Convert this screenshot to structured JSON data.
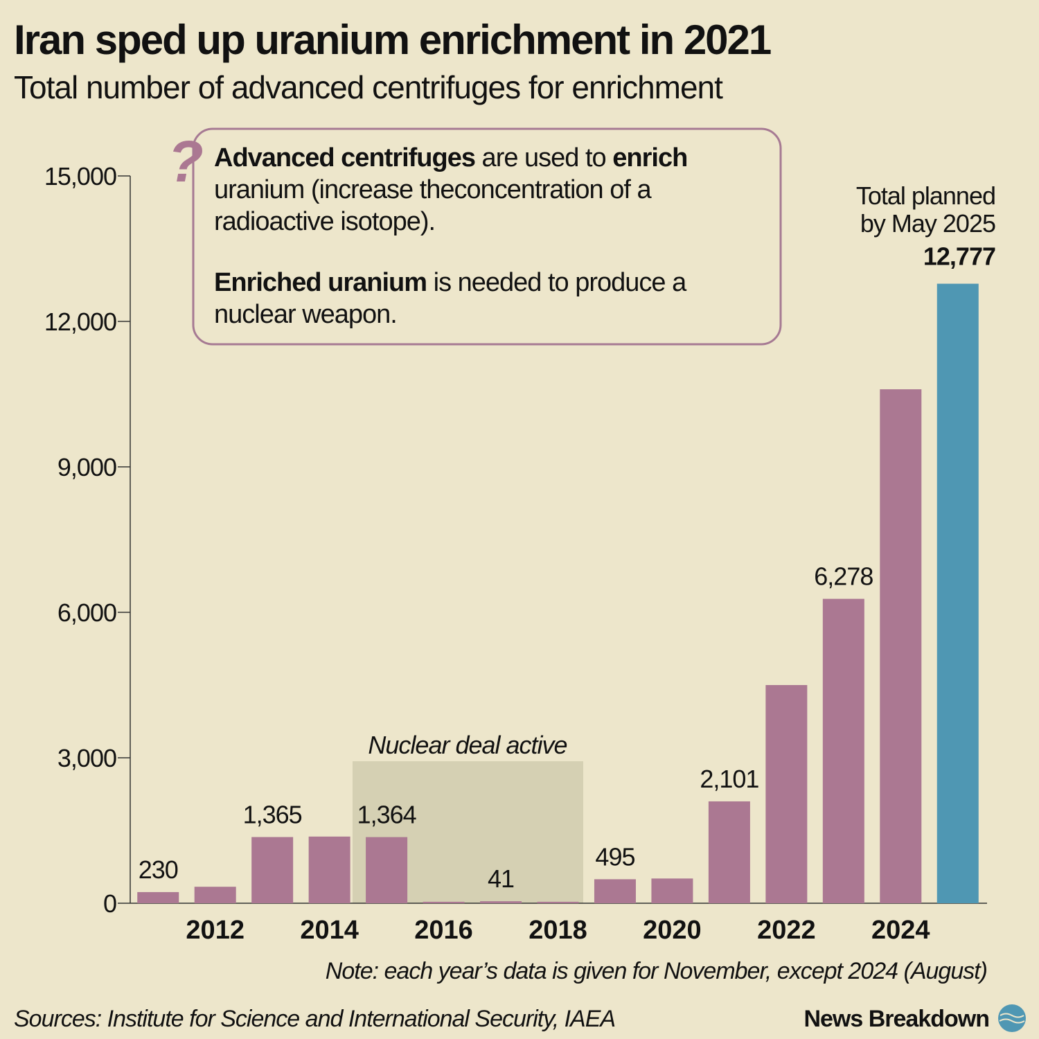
{
  "chart_data": {
    "type": "bar",
    "title": "Iran sped up uranium enrichment in 2021",
    "subtitle": "Total number of advanced centrifuges for enrichment",
    "categories": [
      null,
      "2012",
      null,
      "2014",
      null,
      "2016",
      null,
      "2018",
      null,
      "2020",
      null,
      "2022",
      null,
      "2024",
      null
    ],
    "values": [
      230,
      340,
      1365,
      1375,
      1364,
      30,
      41,
      30,
      495,
      510,
      2101,
      4500,
      6278,
      10600,
      12777
    ],
    "value_labels": [
      "230",
      null,
      "1,365",
      null,
      "1,364",
      null,
      "41",
      null,
      "495",
      null,
      "2,101",
      null,
      "6,278",
      null,
      "12,777"
    ],
    "colors": [
      "#ab7892",
      "#ab7892",
      "#ab7892",
      "#ab7892",
      "#ab7892",
      "#ab7892",
      "#ab7892",
      "#ab7892",
      "#ab7892",
      "#ab7892",
      "#ab7892",
      "#ab7892",
      "#ab7892",
      "#ab7892",
      "#4f97b3"
    ],
    "ylim": [
      0,
      15000
    ],
    "yticks": [
      0,
      {
        "value": 3000,
        "label": "3,000"
      },
      {
        "value": 6000,
        "label": "6,000"
      },
      {
        "value": 9000,
        "label": "9,000"
      },
      {
        "value": 12000,
        "label": "12,000"
      },
      {
        "value": 15000,
        "label": "15,000"
      }
    ],
    "annotations": {
      "deal": "Nuclear deal active",
      "planned": [
        "Total planned",
        "by May 2025"
      ]
    },
    "note": "Note: each year’s data is given for November, except 2024 (August)",
    "source": "Sources: Institute for Science and International Security, IAEA"
  },
  "info_box": {
    "paragraphs": [
      [
        {
          "text": "Advanced centrifuges",
          "bold": true
        },
        {
          "text": " are used to ",
          "bold": false
        },
        {
          "text": "enrich",
          "bold": true
        },
        {
          "text": " uranium (increase theconcentration of a radioactive isotope).",
          "bold": false
        }
      ],
      [
        {
          "text": "Enriched uranium",
          "bold": true
        },
        {
          "text": " is needed to produce a nuclear weapon.",
          "bold": false
        }
      ]
    ]
  },
  "brand": "News Breakdown"
}
